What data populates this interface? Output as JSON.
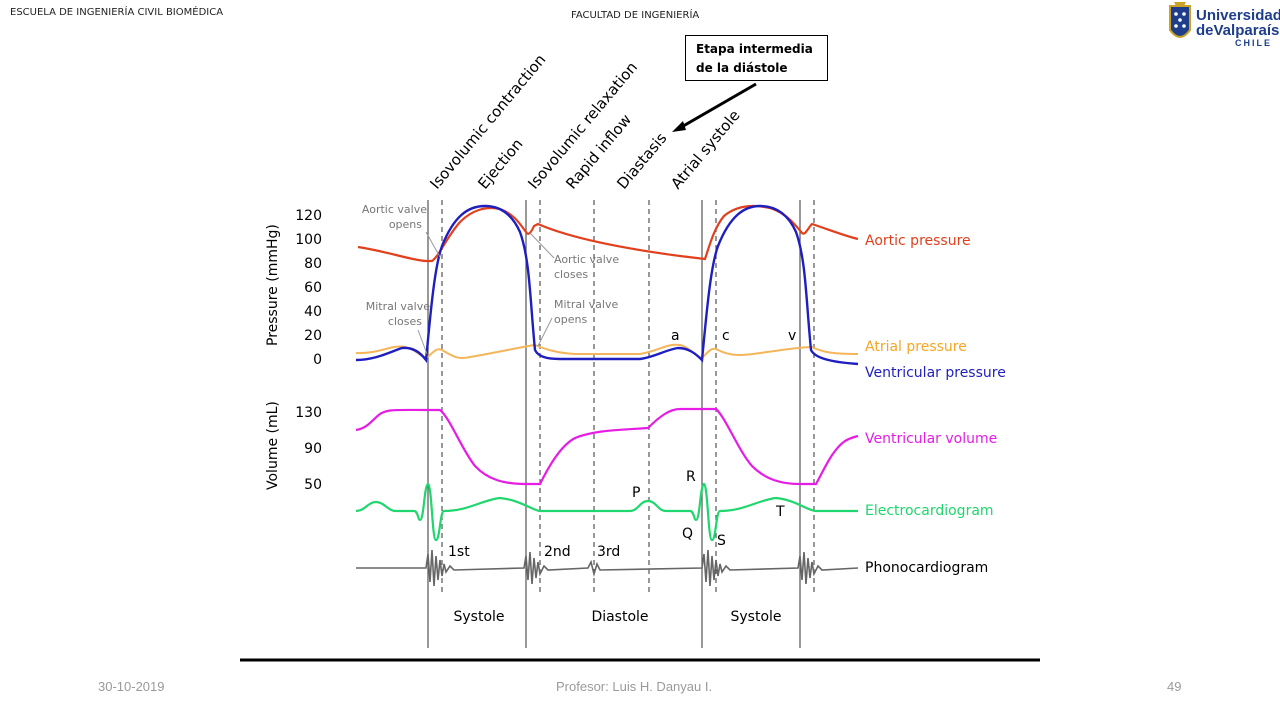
{
  "header": {
    "left": "ESCUELA DE INGENIERÍA  CIVIL BIOMÉDICA",
    "center": "FACULTAD DE INGENIERÍA"
  },
  "logo": {
    "line1": "Universidad",
    "line2": "deValparaíso",
    "line3": "CHILE"
  },
  "callout": {
    "line1": "Etapa intermedia",
    "line2": "de la diástole"
  },
  "phases": [
    "Isovolumic contraction",
    "Ejection",
    "Isovolumic relaxation",
    "Rapid inflow",
    "Diastasis",
    "Atrial systole"
  ],
  "pressure_axis": {
    "label": "Pressure (mmHg)",
    "ticks": [
      "120",
      "100",
      "80",
      "60",
      "40",
      "20",
      "0"
    ]
  },
  "volume_axis": {
    "label": "Volume (mL)",
    "ticks": [
      "130",
      "90",
      "50"
    ]
  },
  "annotations": {
    "aortic_opens": [
      "Aortic valve",
      "opens"
    ],
    "aortic_closes": [
      "Aortic valve",
      "closes"
    ],
    "mitral_closes": [
      "Mitral valve",
      "closes"
    ],
    "mitral_opens": [
      "Mitral valve",
      "opens"
    ]
  },
  "wave_letters": {
    "a": "a",
    "c": "c",
    "v": "v",
    "P": "P",
    "Q": "Q",
    "R": "R",
    "S": "S",
    "T": "T"
  },
  "heart_sounds": [
    "1st",
    "2nd",
    "3rd"
  ],
  "periods": [
    "Systole",
    "Diastole",
    "Systole"
  ],
  "legend": [
    {
      "label": "Aortic pressure",
      "color": "#e2401c"
    },
    {
      "label": "Atrial pressure",
      "color": "#f5a623"
    },
    {
      "label": "Ventricular pressure",
      "color": "#1f1fbf"
    },
    {
      "label": "Ventricular volume",
      "color": "#e51de5"
    },
    {
      "label": "Electrocardiogram",
      "color": "#20d66e"
    },
    {
      "label": "Phonocardiogram",
      "color": "#000000"
    }
  ],
  "footer": {
    "date": "30-10-2019",
    "professor": "Profesor: Luis H. Danyau I.",
    "page": "49"
  }
}
